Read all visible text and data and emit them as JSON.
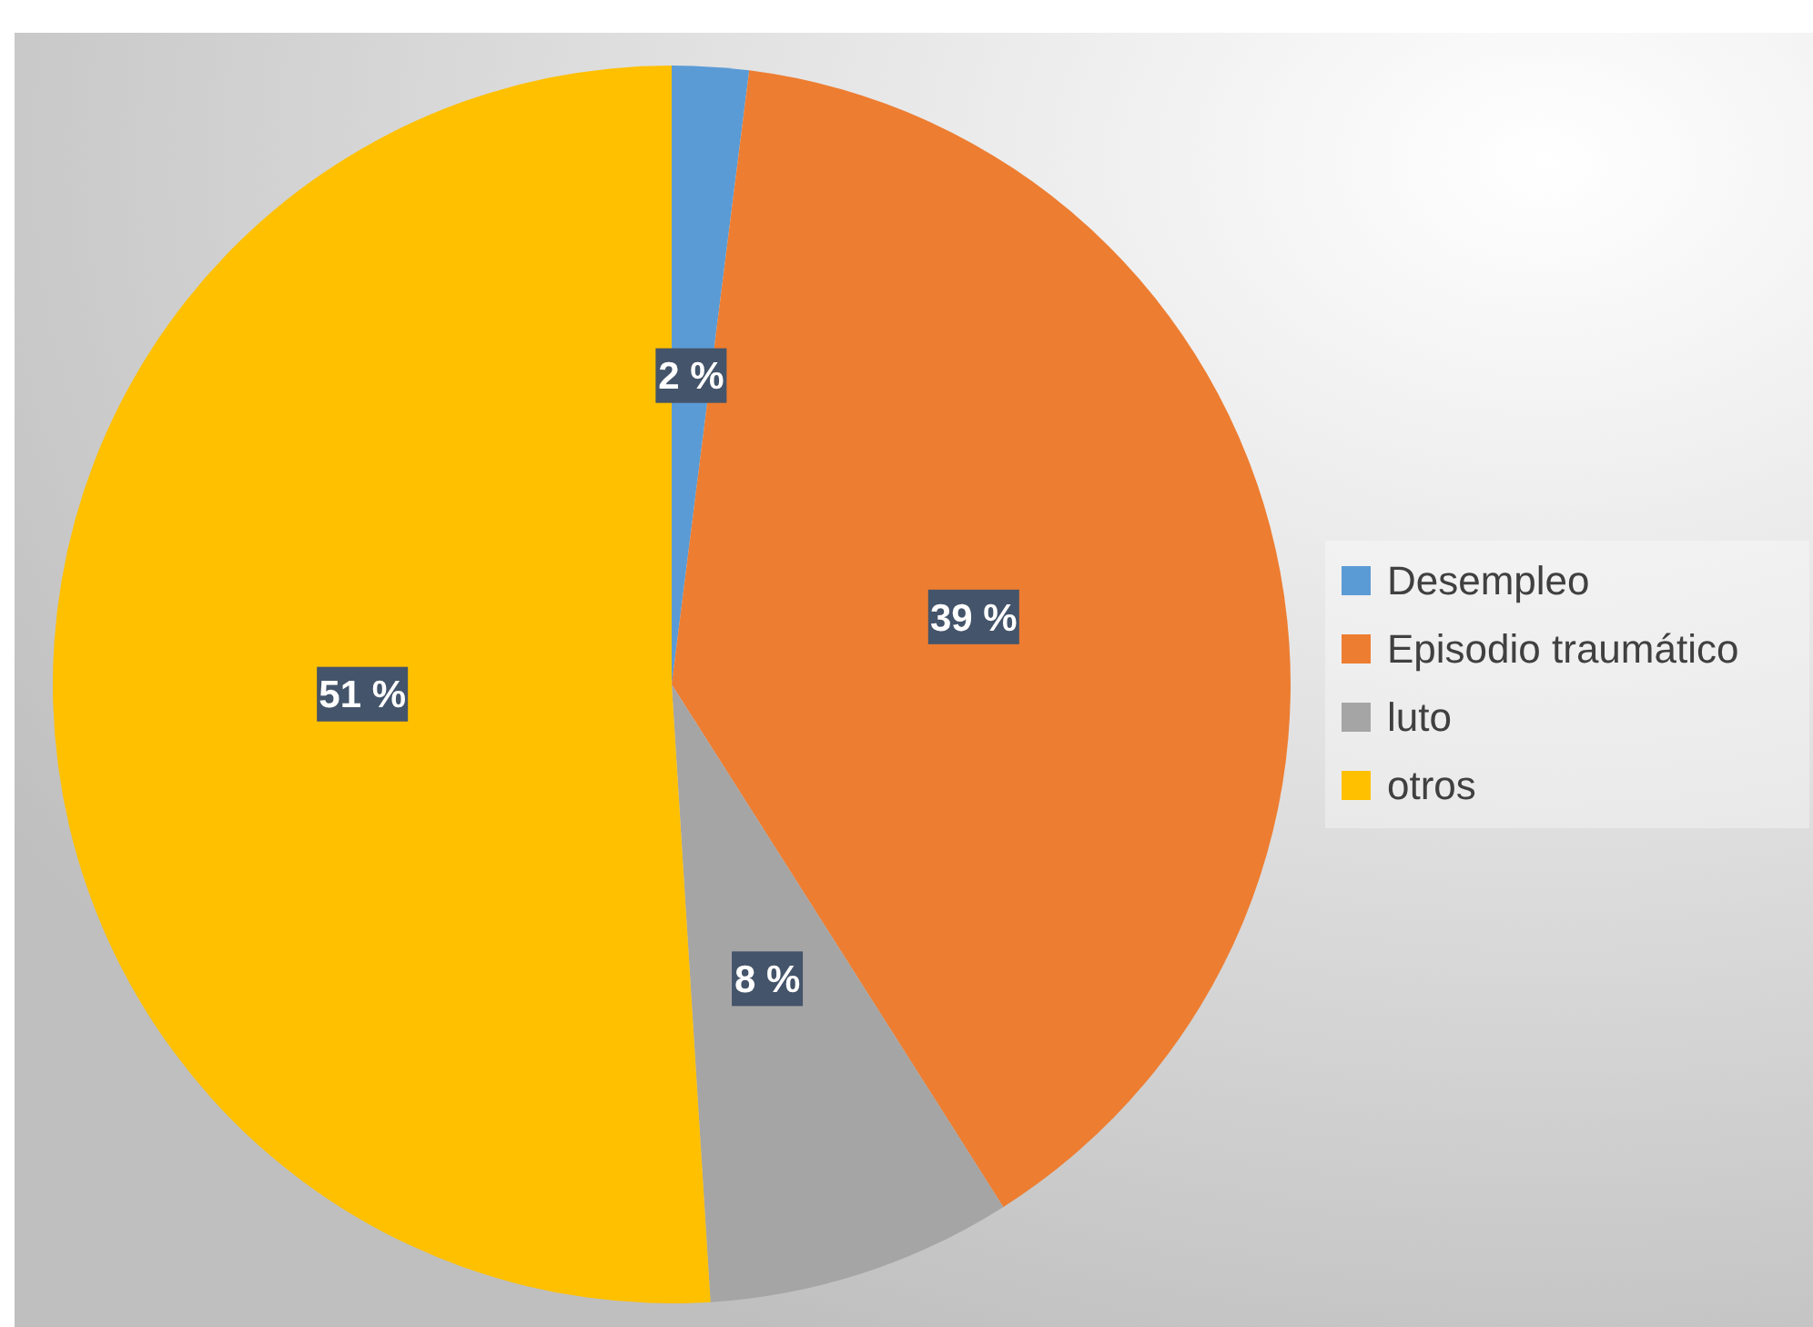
{
  "chart_data": {
    "type": "pie",
    "categories": [
      "Desempleo",
      "Episodio traumático",
      "luto",
      "otros"
    ],
    "values": [
      2,
      39,
      8,
      51
    ],
    "colors": [
      "#5b9bd5",
      "#ed7d31",
      "#a5a5a5",
      "#ffc000"
    ],
    "value_labels": [
      "2 %",
      "39 %",
      "8 %",
      "51 %"
    ],
    "legend": "right"
  }
}
